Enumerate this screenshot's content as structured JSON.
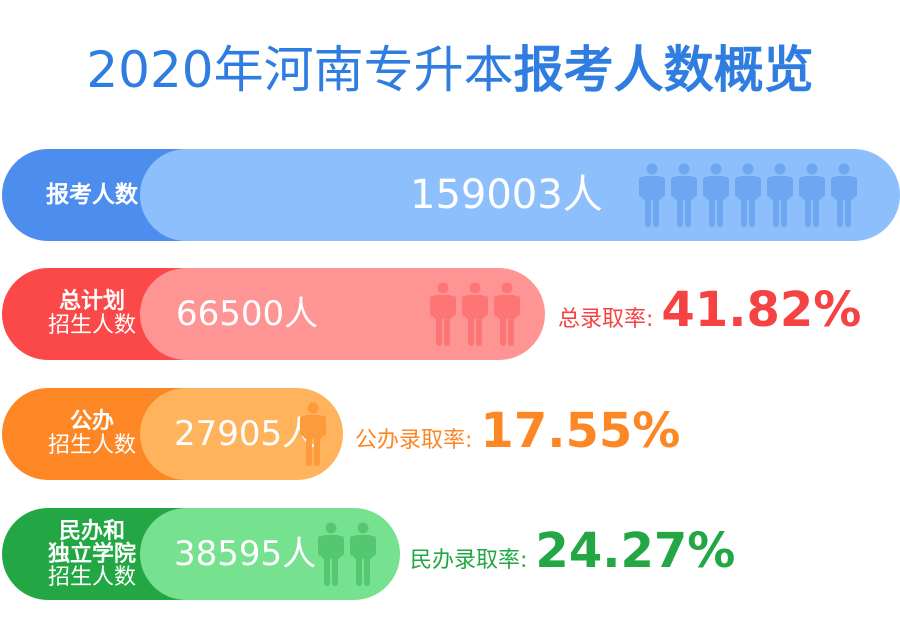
{
  "title": {
    "regular": "2020年河南专升本",
    "bold": "报考人数概览"
  },
  "colors": {
    "title": "#2f7de1",
    "blue": "#4d8ded",
    "blue_light": "#8cbffc",
    "red": "#fb4848",
    "red_light": "#fe9494",
    "orange": "#fd8725",
    "orange_light": "#ffb35c",
    "green": "#22a744",
    "green_light": "#76e18f"
  },
  "rows": [
    {
      "label": [
        "报考人数"
      ],
      "value": "159003人",
      "person_icons": 7
    },
    {
      "label": [
        "总计划",
        "招生人数"
      ],
      "value": "66500人",
      "person_icons": 3,
      "rate_label": "总录取率:",
      "rate_value": "41.82%"
    },
    {
      "label": [
        "公办",
        "招生人数"
      ],
      "value": "27905人",
      "person_icons": 1,
      "rate_label": "公办录取率:",
      "rate_value": "17.55%"
    },
    {
      "label": [
        "民办和",
        "独立学院",
        "招生人数"
      ],
      "value": "38595人",
      "person_icons": 2,
      "rate_label": "民办录取率:",
      "rate_value": "24.27%"
    }
  ]
}
